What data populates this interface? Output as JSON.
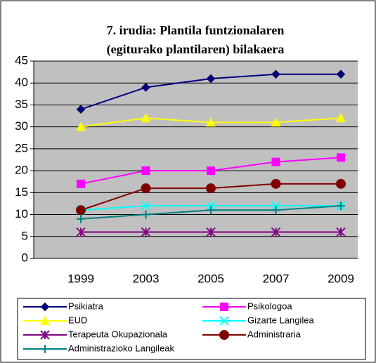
{
  "chart_data": {
    "type": "line",
    "title": [
      "7. irudia: Plantila funtzionalaren",
      "(egiturako plantilaren) bilakaera"
    ],
    "categories": [
      "1999",
      "2003",
      "2005",
      "2007",
      "2009"
    ],
    "series": [
      {
        "name": "Psikiatra",
        "color": "#000080",
        "marker": "diamond",
        "values": [
          34,
          39,
          41,
          42,
          42
        ]
      },
      {
        "name": "Psikologoa",
        "color": "#ff00ff",
        "marker": "square",
        "values": [
          17,
          20,
          20,
          22,
          23
        ]
      },
      {
        "name": "EUD",
        "color": "#ffff00",
        "marker": "triangle",
        "values": [
          30,
          32,
          31,
          31,
          32
        ]
      },
      {
        "name": "Gizarte Langilea",
        "color": "#00ffff",
        "marker": "x",
        "values": [
          11,
          12,
          12,
          12,
          12
        ]
      },
      {
        "name": "Terapeuta Okupazionala",
        "color": "#800080",
        "marker": "star",
        "values": [
          6,
          6,
          6,
          6,
          6
        ]
      },
      {
        "name": "Administraria",
        "color": "#800000",
        "marker": "circle",
        "values": [
          11,
          16,
          16,
          17,
          17
        ]
      },
      {
        "name": "Administrazioko Langileak",
        "color": "#008080",
        "marker": "plus",
        "values": [
          9,
          10,
          11,
          11,
          12
        ]
      }
    ],
    "ylim": [
      0,
      45
    ],
    "yticks": [
      0,
      5,
      10,
      15,
      20,
      25,
      30,
      35,
      40,
      45
    ],
    "grid": true,
    "legend": "bottom"
  }
}
